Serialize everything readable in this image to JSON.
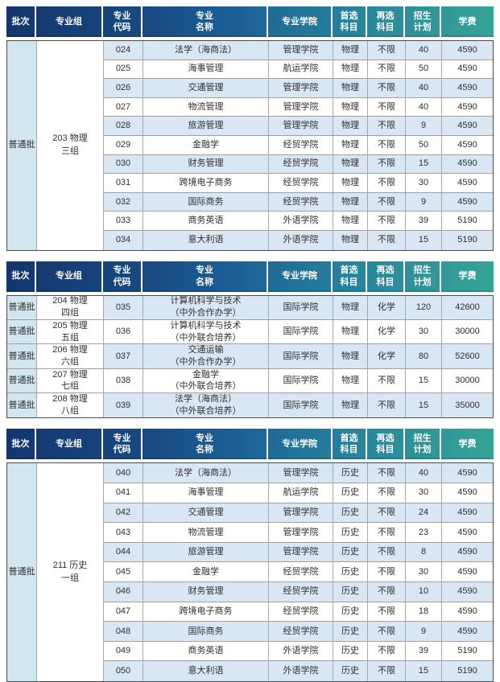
{
  "header": {
    "cols": [
      "批次",
      "专业组",
      "专业\n代码",
      "专业\n名称",
      "专业学院",
      "首选\n科目",
      "再选\n科目",
      "招生\n计划",
      "学费"
    ]
  },
  "colors": {
    "header_gradient_start": "#14356d",
    "header_gradient_mid": "#1b5d95",
    "header_gradient_end": "#36a396",
    "stripe_row": "#d9e7f4",
    "batch_column": "#d2e6ef",
    "header_text": "#ffffff"
  },
  "tables": [
    {
      "batch": "普通批",
      "group": "203 物理\n三组",
      "rows": [
        {
          "code": "024",
          "name": "法学（海商法）",
          "college": "管理学院",
          "first": "物理",
          "second": "不限",
          "plan": "40",
          "fee": "4590"
        },
        {
          "code": "025",
          "name": "海事管理",
          "college": "航运学院",
          "first": "物理",
          "second": "不限",
          "plan": "50",
          "fee": "4590"
        },
        {
          "code": "026",
          "name": "交通管理",
          "college": "管理学院",
          "first": "物理",
          "second": "不限",
          "plan": "40",
          "fee": "4590"
        },
        {
          "code": "027",
          "name": "物流管理",
          "college": "管理学院",
          "first": "物理",
          "second": "不限",
          "plan": "40",
          "fee": "4590"
        },
        {
          "code": "028",
          "name": "旅游管理",
          "college": "管理学院",
          "first": "物理",
          "second": "不限",
          "plan": "9",
          "fee": "4590"
        },
        {
          "code": "029",
          "name": "金融学",
          "college": "经贸学院",
          "first": "物理",
          "second": "不限",
          "plan": "50",
          "fee": "4590"
        },
        {
          "code": "030",
          "name": "财务管理",
          "college": "经贸学院",
          "first": "物理",
          "second": "不限",
          "plan": "15",
          "fee": "4590"
        },
        {
          "code": "031",
          "name": "跨境电子商务",
          "college": "经贸学院",
          "first": "物理",
          "second": "不限",
          "plan": "30",
          "fee": "4590"
        },
        {
          "code": "032",
          "name": "国际商务",
          "college": "经贸学院",
          "first": "物理",
          "second": "不限",
          "plan": "9",
          "fee": "4590"
        },
        {
          "code": "033",
          "name": "商务英语",
          "college": "外语学院",
          "first": "物理",
          "second": "不限",
          "plan": "39",
          "fee": "5190"
        },
        {
          "code": "034",
          "name": "意大利语",
          "college": "外语学院",
          "first": "物理",
          "second": "不限",
          "plan": "15",
          "fee": "5190"
        }
      ]
    },
    {
      "rows": [
        {
          "batch": "普通批",
          "group": "204 物理\n四组",
          "code": "035",
          "name": "计算机科学与技术\n（中外合作办学）",
          "college": "国际学院",
          "first": "物理",
          "second": "化学",
          "plan": "120",
          "fee": "42600"
        },
        {
          "batch": "普通批",
          "group": "205 物理\n五组",
          "code": "036",
          "name": "计算机科学与技术\n（中外联合培养）",
          "college": "国际学院",
          "first": "物理",
          "second": "化学",
          "plan": "30",
          "fee": "30000"
        },
        {
          "batch": "普通批",
          "group": "206 物理\n六组",
          "code": "037",
          "name": "交通运输\n（中外合作办学）",
          "college": "国际学院",
          "first": "物理",
          "second": "化学",
          "plan": "80",
          "fee": "52600"
        },
        {
          "batch": "普通批",
          "group": "207 物理\n七组",
          "code": "038",
          "name": "金融学\n（中外联合培养）",
          "college": "国际学院",
          "first": "物理",
          "second": "不限",
          "plan": "15",
          "fee": "30000"
        },
        {
          "batch": "普通批",
          "group": "208 物理\n八组",
          "code": "039",
          "name": "法学（海商法）\n（中外联合培养）",
          "college": "国际学院",
          "first": "物理",
          "second": "不限",
          "plan": "15",
          "fee": "35000"
        }
      ]
    },
    {
      "batch": "普通批",
      "group": "211 历史\n一组",
      "rows": [
        {
          "code": "040",
          "name": "法学（海商法）",
          "college": "管理学院",
          "first": "历史",
          "second": "不限",
          "plan": "40",
          "fee": "4590"
        },
        {
          "code": "041",
          "name": "海事管理",
          "college": "航运学院",
          "first": "历史",
          "second": "不限",
          "plan": "30",
          "fee": "4590"
        },
        {
          "code": "042",
          "name": "交通管理",
          "college": "管理学院",
          "first": "历史",
          "second": "不限",
          "plan": "24",
          "fee": "4590"
        },
        {
          "code": "043",
          "name": "物流管理",
          "college": "管理学院",
          "first": "历史",
          "second": "不限",
          "plan": "23",
          "fee": "4590"
        },
        {
          "code": "044",
          "name": "旅游管理",
          "college": "管理学院",
          "first": "历史",
          "second": "不限",
          "plan": "8",
          "fee": "4590"
        },
        {
          "code": "045",
          "name": "金融学",
          "college": "经贸学院",
          "first": "历史",
          "second": "不限",
          "plan": "30",
          "fee": "4590"
        },
        {
          "code": "046",
          "name": "财务管理",
          "college": "经贸学院",
          "first": "历史",
          "second": "不限",
          "plan": "10",
          "fee": "4590"
        },
        {
          "code": "047",
          "name": "跨境电子商务",
          "college": "经贸学院",
          "first": "历史",
          "second": "不限",
          "plan": "18",
          "fee": "4590"
        },
        {
          "code": "048",
          "name": "国际商务",
          "college": "经贸学院",
          "first": "历史",
          "second": "不限",
          "plan": "9",
          "fee": "4590"
        },
        {
          "code": "049",
          "name": "商务英语",
          "college": "外语学院",
          "first": "历史",
          "second": "不限",
          "plan": "39",
          "fee": "5190"
        },
        {
          "code": "050",
          "name": "意大利语",
          "college": "外语学院",
          "first": "历史",
          "second": "不限",
          "plan": "15",
          "fee": "5190"
        }
      ]
    }
  ]
}
